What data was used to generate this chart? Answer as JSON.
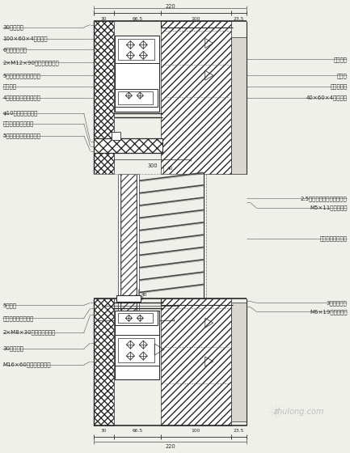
{
  "bg_color": "#f0f0eb",
  "line_color": "#2a2a2a",
  "text_color": "#2a2a2a",
  "parts_labels": [
    "30",
    "66.5",
    "100",
    "23.5"
  ],
  "total_label": "220",
  "mid_dim_label": "300",
  "left_labels_top": [
    "30厚花岗石",
    "100×60×4镇锌方管",
    "6厚镇锌连接件",
    "2×M12×90不锈销对穿螺栓",
    "5厚铝合金石材专用挂件",
    "环氧树脂",
    "4厚铝合金石材专用挂件",
    "φ10聚乙烯发泡尼杆",
    "石材专用密封填缝胶",
    "5厚石材专用铝合金挂件"
  ],
  "right_labels_top": [
    "土建墙体",
    "预埋件",
    "内装修处理",
    "40×60×4镇锌方管"
  ],
  "right_labels_mid": [
    "2.5厚氟碳铝板折制百叶边框",
    "M5×11抖芯铆養钉",
    "氟碳喇涂铝百叶片",
    "3厚连接角铝",
    "M6×19不锈销钉丁"
  ],
  "left_labels_bottom": [
    "5号角钐",
    "石材专用密封填缝胶",
    "2×M8×30不锈销对穿螺栓",
    "30厚花岗石",
    "M16×60不锈销对穿螺栓"
  ],
  "watermark": "zhulong.com"
}
